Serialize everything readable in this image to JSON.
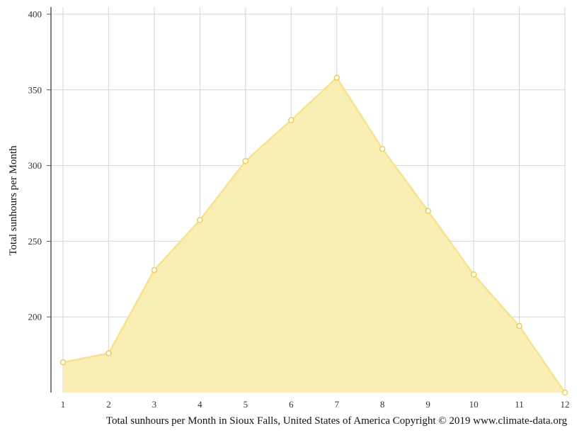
{
  "chart_data": {
    "type": "area",
    "title": "",
    "xlabel": "Total sunhours per Month in Sioux Falls, United States of America Copyright © 2019 www.climate-data.org",
    "ylabel": "Total sunhours per Month",
    "categories": [
      "1",
      "2",
      "3",
      "4",
      "5",
      "6",
      "7",
      "8",
      "9",
      "10",
      "11",
      "12"
    ],
    "series": [
      {
        "values": [
          170,
          176,
          231,
          264,
          303,
          330,
          358,
          311,
          270,
          228,
          194,
          150
        ]
      }
    ],
    "ylim": [
      150,
      400
    ],
    "yticks": [
      "200",
      "250",
      "300",
      "350",
      "400"
    ],
    "grid": true,
    "legend": "none",
    "colors": {
      "fill": "#f9eeb0",
      "stroke": "#f7e28d",
      "marker_fill": "#ffffff",
      "marker_stroke": "#e9cf55",
      "grid": "#d6d6d6",
      "axis": "#555555"
    }
  }
}
